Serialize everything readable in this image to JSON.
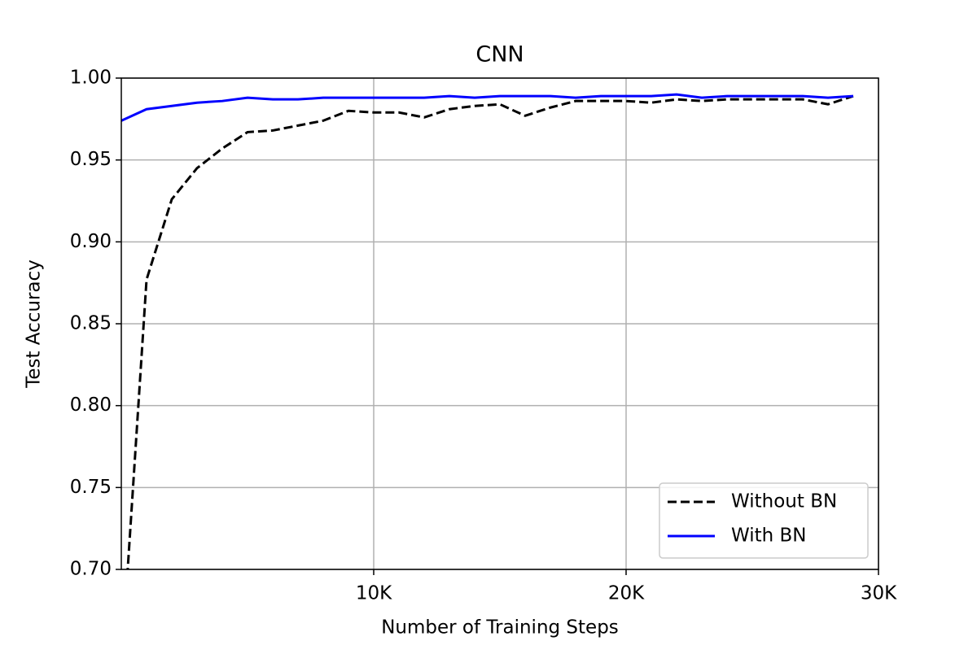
{
  "chart_data": {
    "type": "line",
    "title": "CNN",
    "xlabel": "Number of Training Steps",
    "ylabel": "Test Accuracy",
    "x": [
      0,
      1000,
      2000,
      3000,
      4000,
      5000,
      6000,
      7000,
      8000,
      9000,
      10000,
      11000,
      12000,
      13000,
      14000,
      15000,
      16000,
      17000,
      18000,
      19000,
      20000,
      21000,
      22000,
      23000,
      24000,
      25000,
      26000,
      27000,
      28000,
      29000
    ],
    "series": [
      {
        "name": "Without BN",
        "color": "#000000",
        "dash": true,
        "values": [
          0.64,
          0.877,
          0.926,
          0.945,
          0.957,
          0.967,
          0.968,
          0.971,
          0.974,
          0.98,
          0.979,
          0.979,
          0.976,
          0.981,
          0.983,
          0.984,
          0.977,
          0.982,
          0.986,
          0.986,
          0.986,
          0.985,
          0.987,
          0.986,
          0.987,
          0.987,
          0.987,
          0.987,
          0.984,
          0.989
        ]
      },
      {
        "name": "With BN",
        "color": "#0000ff",
        "dash": false,
        "values": [
          0.974,
          0.981,
          0.983,
          0.985,
          0.986,
          0.988,
          0.987,
          0.987,
          0.988,
          0.988,
          0.988,
          0.988,
          0.988,
          0.989,
          0.988,
          0.989,
          0.989,
          0.989,
          0.988,
          0.989,
          0.989,
          0.989,
          0.99,
          0.988,
          0.989,
          0.989,
          0.989,
          0.989,
          0.988,
          0.989
        ]
      }
    ],
    "xlim": [
      0,
      30000
    ],
    "xticks": [
      {
        "value": 10000,
        "label": "10K"
      },
      {
        "value": 20000,
        "label": "20K"
      },
      {
        "value": 30000,
        "label": "30K"
      }
    ],
    "ylim": [
      0.7,
      1.0
    ],
    "yticks": [
      {
        "value": 0.7,
        "label": "0.70"
      },
      {
        "value": 0.75,
        "label": "0.75"
      },
      {
        "value": 0.8,
        "label": "0.80"
      },
      {
        "value": 0.85,
        "label": "0.85"
      },
      {
        "value": 0.9,
        "label": "0.90"
      },
      {
        "value": 0.95,
        "label": "0.95"
      },
      {
        "value": 1.0,
        "label": "1.00"
      }
    ],
    "grid": true,
    "legend": "lower right"
  }
}
